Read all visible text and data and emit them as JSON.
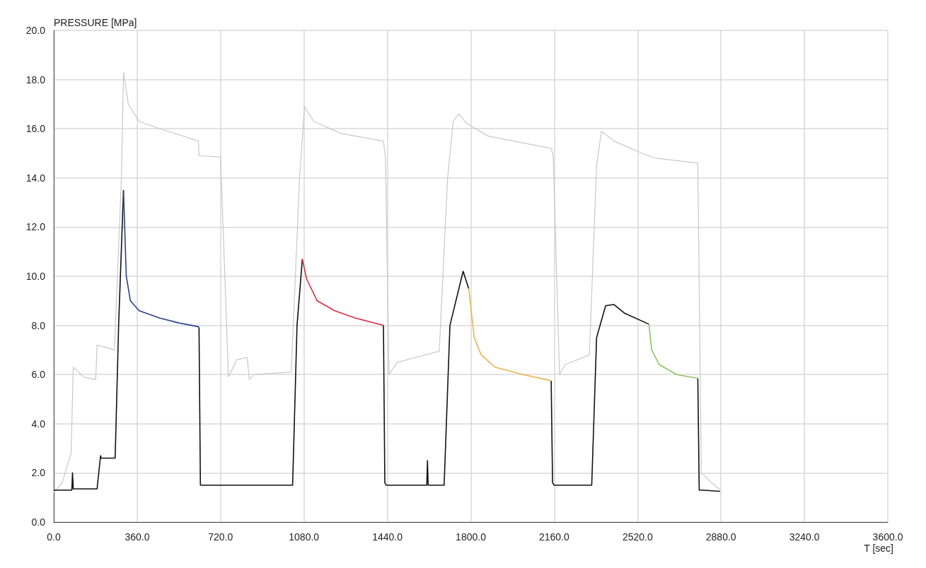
{
  "chart_data": {
    "type": "line",
    "ylabel": "PRESSURE [MPa]",
    "xlabel": "T [sec]",
    "grid": true,
    "marker": "none",
    "line_style": "solid",
    "xlim": [
      0,
      3600
    ],
    "ylim": [
      0,
      20
    ],
    "xticks": [
      {
        "value": 0,
        "label": "0.0"
      },
      {
        "value": 360,
        "label": "360.0"
      },
      {
        "value": 720,
        "label": "720.0"
      },
      {
        "value": 1080,
        "label": "1080.0"
      },
      {
        "value": 1440,
        "label": "1440.0"
      },
      {
        "value": 1800,
        "label": "1800.0"
      },
      {
        "value": 2160,
        "label": "2160.0"
      },
      {
        "value": 2520,
        "label": "2520.0"
      },
      {
        "value": 2880,
        "label": "2880.0"
      },
      {
        "value": 3240,
        "label": "3240.0"
      },
      {
        "value": 3600,
        "label": "3600.0"
      }
    ],
    "yticks": [
      {
        "value": 0,
        "label": "0.0"
      },
      {
        "value": 2,
        "label": "2.0"
      },
      {
        "value": 4,
        "label": "4.0"
      },
      {
        "value": 6,
        "label": "6.0"
      },
      {
        "value": 8,
        "label": "8.0"
      },
      {
        "value": 10,
        "label": "10.0"
      },
      {
        "value": 12,
        "label": "12.0"
      },
      {
        "value": 14,
        "label": "14.0"
      },
      {
        "value": 16,
        "label": "16.0"
      },
      {
        "value": 18,
        "label": "18.0"
      },
      {
        "value": 20,
        "label": "20.0"
      }
    ],
    "series": [
      {
        "color": "#c8c8c8",
        "x": [
          0,
          36,
          75,
          84,
          130,
          181,
          187,
          262,
          292,
          301,
          322,
          368,
          458,
          624,
          627,
          720,
          754,
          790,
          835,
          844,
          865,
          1025,
          1061,
          1082,
          1122,
          1242,
          1423,
          1432,
          1447,
          1483,
          1664,
          1700,
          1724,
          1748,
          1785,
          1875,
          2147,
          2156,
          2183,
          2207,
          2312,
          2343,
          2364,
          2418,
          2539,
          2599,
          2780,
          2795,
          2840,
          2876
        ],
        "values": [
          1.2,
          1.6,
          2.8,
          6.3,
          5.9,
          5.8,
          7.2,
          7.0,
          14.0,
          18.3,
          17.0,
          16.3,
          16.0,
          15.5,
          14.9,
          14.85,
          5.9,
          6.6,
          6.7,
          5.8,
          6.0,
          6.1,
          14.0,
          16.9,
          16.3,
          15.8,
          15.5,
          14.8,
          6.0,
          6.5,
          6.95,
          14.0,
          16.3,
          16.6,
          16.2,
          15.7,
          15.2,
          14.9,
          6.0,
          6.4,
          6.8,
          14.5,
          15.9,
          15.5,
          15.0,
          14.8,
          14.6,
          2.0,
          1.6,
          1.3
        ]
      },
      {
        "color": "#111111",
        "x": [
          0,
          78,
          81,
          84,
          187,
          202,
          205,
          265,
          280,
          301,
          460,
          627,
          633,
          1031,
          1050,
          1073,
          1250,
          1423,
          1429,
          1435,
          1610,
          1613,
          1616,
          1685,
          1710,
          1767,
          1791,
          1980,
          2147,
          2153,
          2160,
          2322,
          2343,
          2382,
          2418,
          2463,
          2569,
          2680,
          2780,
          2786,
          2798,
          2876
        ],
        "values": [
          1.3,
          1.3,
          2.0,
          1.35,
          1.35,
          2.7,
          2.6,
          2.6,
          8.0,
          13.5,
          null,
          7.9,
          1.5,
          1.5,
          8.0,
          10.7,
          null,
          8.0,
          1.6,
          1.5,
          1.5,
          2.5,
          1.5,
          1.5,
          8.0,
          10.2,
          9.5,
          null,
          5.75,
          1.6,
          1.5,
          1.5,
          7.5,
          8.8,
          8.85,
          8.5,
          8.05,
          null,
          5.85,
          1.3,
          1.3,
          1.25
        ]
      },
      {
        "color": "#2a3f8f",
        "x": [
          301,
          313,
          331,
          368,
          458,
          540,
          624,
          627
        ],
        "values": [
          13.5,
          10.0,
          9.0,
          8.6,
          8.3,
          8.1,
          7.95,
          7.9
        ]
      },
      {
        "color": "#d9303f",
        "x": [
          1073,
          1091,
          1137,
          1212,
          1302,
          1423
        ],
        "values": [
          10.7,
          9.9,
          9.0,
          8.6,
          8.3,
          8.0
        ]
      },
      {
        "color": "#f0b050",
        "x": [
          1791,
          1815,
          1845,
          1905,
          2026,
          2147
        ],
        "values": [
          9.5,
          7.5,
          6.8,
          6.3,
          6.0,
          5.75
        ]
      },
      {
        "color": "#8cc460",
        "x": [
          2569,
          2581,
          2614,
          2689,
          2780
        ],
        "values": [
          8.05,
          7.0,
          6.4,
          6.0,
          5.85
        ]
      }
    ]
  }
}
